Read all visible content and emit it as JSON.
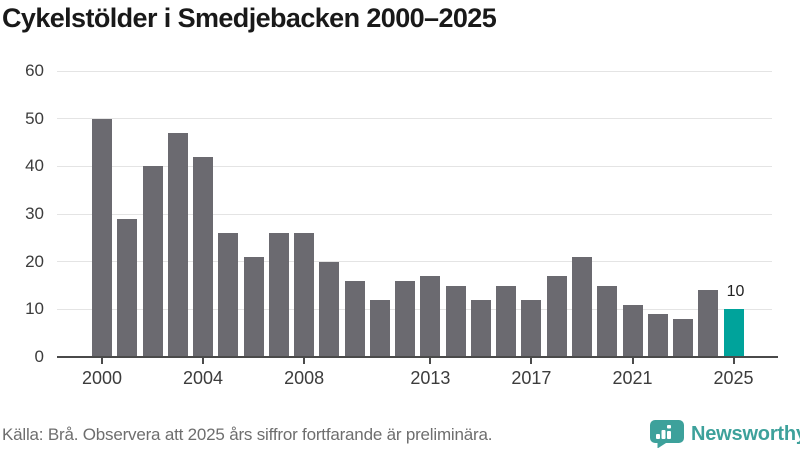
{
  "title": "Cykelstölder i Smedjebacken 2000–2025",
  "footer": {
    "source_note": "Källa: Brå. Observera att 2025 års siffror fortfarande är preliminära.",
    "brand": "Newsworthy"
  },
  "colors": {
    "bar": "#6b6a70",
    "highlight": "#00a39b",
    "brand_teal": "#3da19b",
    "axis": "#4a4a4a",
    "grid": "#e4e4e4",
    "title_text": "#191919",
    "tick_text": "#3c3c3c",
    "note_text": "#6e6e6e"
  },
  "chart_data": {
    "type": "bar",
    "title": "Cykelstölder i Smedjebacken 2000–2025",
    "categories": [
      2000,
      2001,
      2002,
      2003,
      2004,
      2005,
      2006,
      2007,
      2008,
      2009,
      2010,
      2011,
      2012,
      2013,
      2014,
      2015,
      2016,
      2017,
      2018,
      2019,
      2020,
      2021,
      2022,
      2023,
      2024,
      2025
    ],
    "values": [
      50,
      29,
      40,
      47,
      42,
      26,
      21,
      26,
      26,
      20,
      16,
      12,
      16,
      17,
      15,
      12,
      15,
      12,
      17,
      21,
      15,
      11,
      9,
      8,
      14,
      10
    ],
    "highlight_index": 25,
    "highlight_label": "10",
    "x_tick_labels": [
      "2000",
      "2004",
      "2008",
      "2013",
      "2017",
      "2021",
      "2025"
    ],
    "y_ticks": [
      0,
      10,
      20,
      30,
      40,
      50,
      60
    ],
    "ylim": [
      0,
      60
    ],
    "xlabel": "",
    "ylabel": "",
    "grid": "horizontal",
    "legend": "none"
  }
}
